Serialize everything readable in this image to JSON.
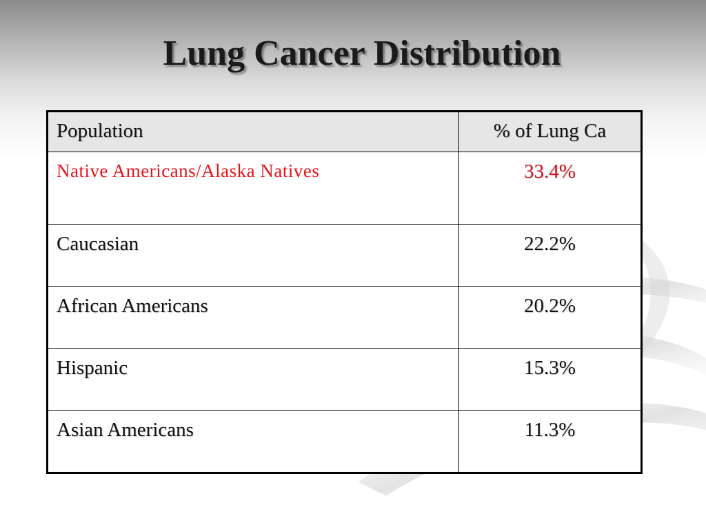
{
  "slide": {
    "title": "Lung Cancer Distribution"
  },
  "table": {
    "headers": [
      "Population",
      "% of Lung Ca"
    ],
    "rows": [
      {
        "population": "Native Americans/Alaska Natives",
        "percent": "33.4%",
        "highlighted": true
      },
      {
        "population": "Caucasian",
        "percent": "22.2%",
        "highlighted": false
      },
      {
        "population": "African Americans",
        "percent": "20.2%",
        "highlighted": false
      },
      {
        "population": "Hispanic",
        "percent": "15.3%",
        "highlighted": false
      },
      {
        "population": "Asian Americans",
        "percent": "11.3%",
        "highlighted": false
      }
    ]
  },
  "colors": {
    "highlight_text": "#e8141b",
    "header_bg": "#e6e6e6",
    "border": "#000000"
  }
}
